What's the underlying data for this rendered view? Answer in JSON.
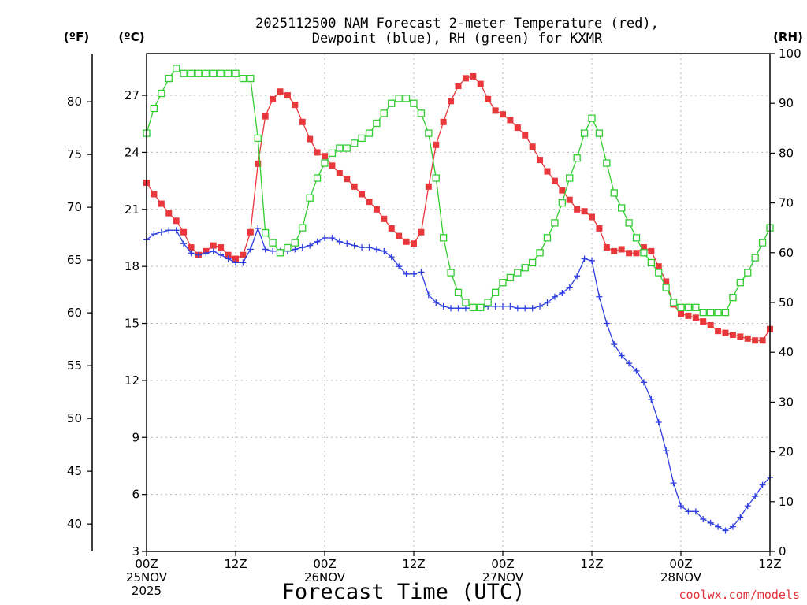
{
  "chart_data": {
    "type": "line",
    "title": [
      "2025112500 NAM Forecast 2-meter Temperature (red),",
      "Dewpoint (blue), RH (green) for KXMR"
    ],
    "xlabel": "Forecast Time (UTC)",
    "credit": "coolwx.com/models",
    "units": {
      "fahrenheit": "(ºF)",
      "celsius": "(ºC)",
      "rh": "(RH)"
    },
    "x_range_hours": [
      0,
      84
    ],
    "y_celsius_range": [
      3,
      29.2
    ],
    "y_fahrenheit_ticks": [
      "40",
      "45",
      "50",
      "55",
      "60",
      "65",
      "70",
      "75",
      "80"
    ],
    "y_celsius_ticks": [
      "3",
      "6",
      "9",
      "12",
      "15",
      "18",
      "21",
      "24",
      "27"
    ],
    "y_rh_ticks": [
      "0",
      "10",
      "20",
      "30",
      "40",
      "50",
      "60",
      "70",
      "80",
      "90",
      "100"
    ],
    "y_rh_range": [
      0,
      100
    ],
    "x_ticks": [
      {
        "hour": 0,
        "lines": [
          "00Z",
          "25NOV",
          "2025"
        ]
      },
      {
        "hour": 12,
        "lines": [
          "12Z"
        ]
      },
      {
        "hour": 24,
        "lines": [
          "00Z",
          "26NOV"
        ]
      },
      {
        "hour": 36,
        "lines": [
          "12Z"
        ]
      },
      {
        "hour": 48,
        "lines": [
          "00Z",
          "27NOV"
        ]
      },
      {
        "hour": 60,
        "lines": [
          "12Z"
        ]
      },
      {
        "hour": 72,
        "lines": [
          "00Z",
          "28NOV"
        ]
      },
      {
        "hour": 84,
        "lines": [
          "12Z"
        ]
      }
    ],
    "hours": [
      0,
      1,
      2,
      3,
      4,
      5,
      6,
      7,
      8,
      9,
      10,
      11,
      12,
      13,
      14,
      15,
      16,
      17,
      18,
      19,
      20,
      21,
      22,
      23,
      24,
      25,
      26,
      27,
      28,
      29,
      30,
      31,
      32,
      33,
      34,
      35,
      36,
      37,
      38,
      39,
      40,
      41,
      42,
      43,
      44,
      45,
      46,
      47,
      48,
      49,
      50,
      51,
      52,
      53,
      54,
      55,
      56,
      57,
      58,
      59,
      60,
      61,
      62,
      63,
      64,
      65,
      66,
      67,
      68,
      69,
      70,
      71,
      72,
      73,
      74,
      75,
      76,
      77,
      78,
      79,
      80,
      81,
      82,
      83,
      84
    ],
    "series": [
      {
        "name": "Temperature",
        "units": "C",
        "color": "#e8383c",
        "marker": "filled-square",
        "values": [
          22.4,
          21.8,
          21.3,
          20.8,
          20.4,
          19.8,
          19.0,
          18.6,
          18.8,
          19.1,
          19.0,
          18.6,
          18.4,
          18.6,
          19.8,
          23.4,
          25.9,
          26.8,
          27.2,
          27.0,
          26.5,
          25.6,
          24.7,
          24.0,
          23.8,
          23.3,
          22.9,
          22.6,
          22.2,
          21.8,
          21.4,
          21.0,
          20.5,
          20.0,
          19.6,
          19.3,
          19.2,
          19.8,
          22.2,
          24.4,
          25.6,
          26.7,
          27.5,
          27.9,
          28.0,
          27.6,
          26.8,
          26.2,
          26.0,
          25.7,
          25.3,
          24.9,
          24.3,
          23.6,
          23.0,
          22.5,
          22.0,
          21.5,
          21.0,
          20.9,
          20.6,
          20.0,
          19.0,
          18.8,
          18.9,
          18.7,
          18.7,
          19.0,
          18.8,
          18.0,
          17.2,
          16.0,
          15.5,
          15.4,
          15.3,
          15.1,
          14.9,
          14.6,
          14.5,
          14.4,
          14.3,
          14.2,
          14.1,
          14.1,
          14.7
        ]
      },
      {
        "name": "Dewpoint",
        "units": "C",
        "color": "#2f3fe0",
        "marker": "plus",
        "values": [
          19.4,
          19.7,
          19.8,
          19.9,
          19.9,
          19.2,
          18.7,
          18.6,
          18.7,
          18.8,
          18.6,
          18.4,
          18.2,
          18.2,
          18.9,
          20.0,
          18.9,
          18.8,
          18.8,
          18.8,
          18.9,
          19.0,
          19.1,
          19.3,
          19.5,
          19.5,
          19.3,
          19.2,
          19.1,
          19.0,
          19.0,
          18.9,
          18.8,
          18.5,
          18.0,
          17.6,
          17.6,
          17.7,
          16.5,
          16.1,
          15.9,
          15.8,
          15.8,
          15.8,
          15.8,
          15.8,
          15.9,
          15.9,
          15.9,
          15.9,
          15.8,
          15.8,
          15.8,
          15.9,
          16.1,
          16.4,
          16.6,
          16.9,
          17.5,
          18.4,
          18.3,
          16.4,
          15.0,
          13.9,
          13.3,
          12.9,
          12.5,
          11.9,
          11.0,
          9.8,
          8.3,
          6.6,
          5.4,
          5.1,
          5.1,
          4.7,
          4.5,
          4.3,
          4.1,
          4.3,
          4.8,
          5.4,
          5.9,
          6.5,
          6.9
        ]
      },
      {
        "name": "RH",
        "units": "%",
        "color": "#33cc33",
        "marker": "open-square",
        "values": [
          84,
          89,
          92,
          95,
          97,
          96,
          96,
          96,
          96,
          96,
          96,
          96,
          96,
          95,
          95,
          83,
          64,
          62,
          60,
          61,
          62,
          65,
          71,
          75,
          78,
          80,
          81,
          81,
          82,
          83,
          84,
          86,
          88,
          90,
          91,
          91,
          90,
          88,
          84,
          75,
          63,
          56,
          52,
          50,
          49,
          49,
          50,
          52,
          54,
          55,
          56,
          57,
          58,
          60,
          63,
          66,
          70,
          75,
          79,
          84,
          87,
          84,
          78,
          72,
          69,
          66,
          63,
          60,
          58,
          56,
          53,
          50,
          49,
          49,
          49,
          48,
          48,
          48,
          48,
          51,
          54,
          56,
          59,
          62,
          65
        ]
      }
    ]
  }
}
